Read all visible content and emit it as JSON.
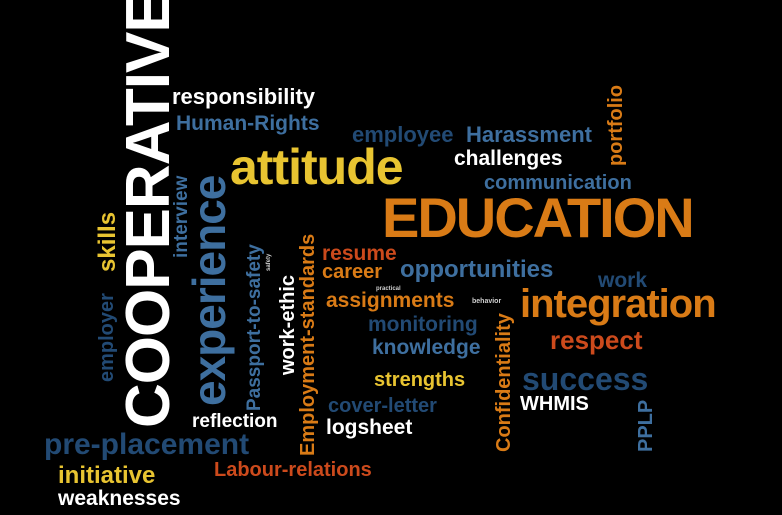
{
  "colors": {
    "white": "#ffffff",
    "yellow": "#e8c431",
    "orange": "#d97b16",
    "red": "#cc4a1c",
    "blue": "#3e6f9f",
    "navy": "#224a74",
    "light": "#cfcfcf"
  },
  "words": {
    "cooperative": "COOPERATIVE",
    "responsibility": "responsibility",
    "human_rights": "Human-Rights",
    "employee": "employee",
    "harassment": "Harassment",
    "portfolio": "portfolio",
    "interview": "interview",
    "experience": "experience",
    "attitude": "attitude",
    "challenges": "challenges",
    "communication": "communication",
    "skills": "skills",
    "employer": "employer",
    "education": "EDUCATION",
    "passport_to_safety": "Passport-to-safety",
    "safety": "safety",
    "work_ethic": "work-ethic",
    "employment_standards": "Employment-standards",
    "resume": "resume",
    "career": "career",
    "opportunities": "opportunities",
    "work": "work",
    "practical": "practical",
    "assignments": "assignments",
    "behavior": "behavior",
    "confidentiality": "Confidentiality",
    "integration": "integration",
    "monitoring": "monitoring",
    "knowledge": "knowledge",
    "respect": "respect",
    "strengths": "strengths",
    "success": "success",
    "cover_letter": "cover-letter",
    "whmis": "WHMIS",
    "pplp": "PPLP",
    "reflection": "reflection",
    "pre_placement": "pre-placement",
    "logsheet": "logsheet",
    "initiative": "initiative",
    "labour_relations": "Labour-relations",
    "weaknesses": "weaknesses"
  }
}
